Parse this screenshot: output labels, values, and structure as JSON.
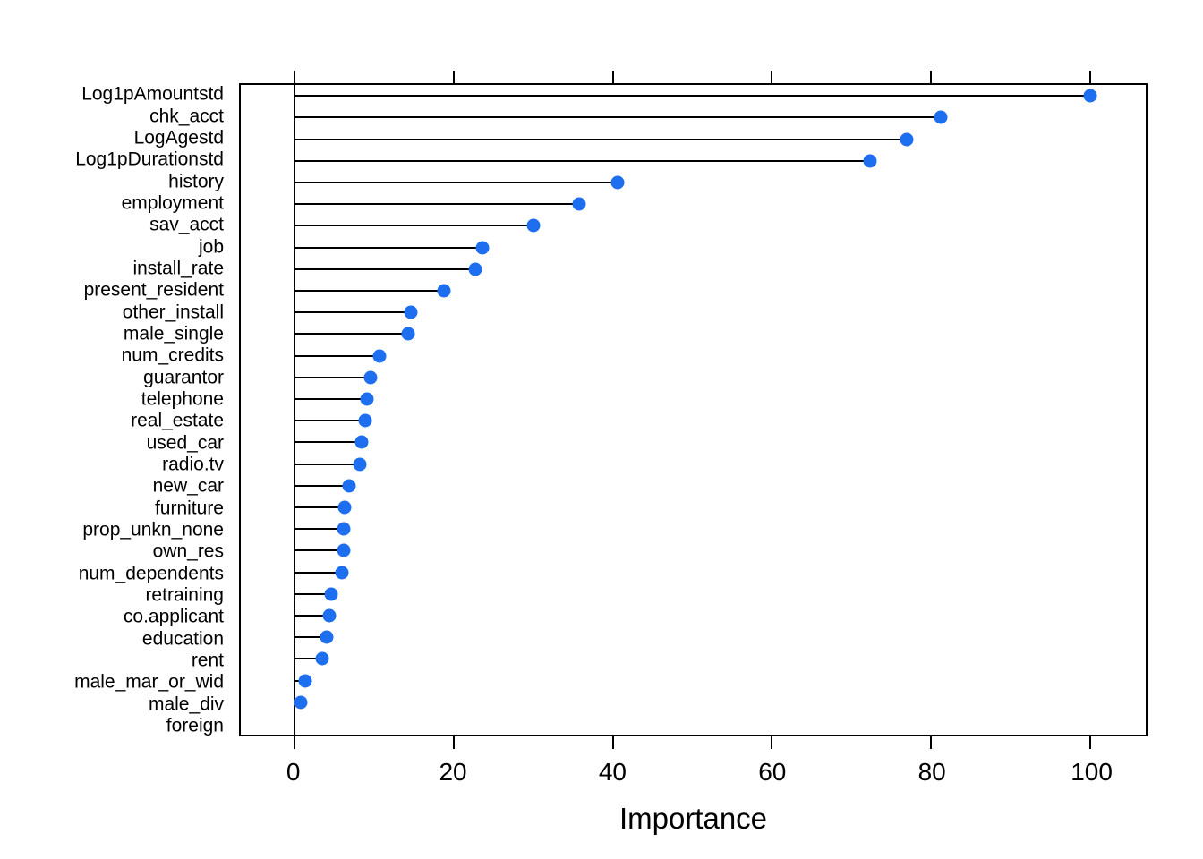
{
  "figure": {
    "background_color": "#ffffff",
    "text_color": "#000000",
    "border_color": "#000000"
  },
  "chart_data": {
    "type": "dot",
    "style": "lollipop-dotchart",
    "xlabel": "Importance",
    "x_ticks": [
      0,
      20,
      40,
      60,
      80,
      100
    ],
    "xlim": [
      -6.8,
      107.0
    ],
    "grid": false,
    "legend": null,
    "dot_color": "#1e6ef0",
    "line_color": "#000000",
    "hide_dot_when_zero": true,
    "categories": [
      "Log1pAmountstd",
      "chk_acct",
      "LogAgestd",
      "Log1pDurationstd",
      "history",
      "employment",
      "sav_acct",
      "job",
      "install_rate",
      "present_resident",
      "other_install",
      "male_single",
      "num_credits",
      "guarantor",
      "telephone",
      "real_estate",
      "used_car",
      "radio.tv",
      "new_car",
      "furniture",
      "prop_unkn_none",
      "own_res",
      "num_dependents",
      "retraining",
      "co.applicant",
      "education",
      "rent",
      "male_mar_or_wid",
      "male_div",
      "foreign"
    ],
    "values": [
      100.0,
      81.2,
      77.0,
      72.3,
      40.6,
      35.7,
      30.0,
      23.6,
      22.7,
      18.7,
      14.6,
      14.2,
      10.6,
      9.5,
      9.1,
      8.9,
      8.4,
      8.2,
      6.8,
      6.3,
      6.2,
      6.1,
      5.9,
      4.6,
      4.3,
      4.0,
      3.4,
      1.3,
      0.7,
      0.0
    ]
  }
}
